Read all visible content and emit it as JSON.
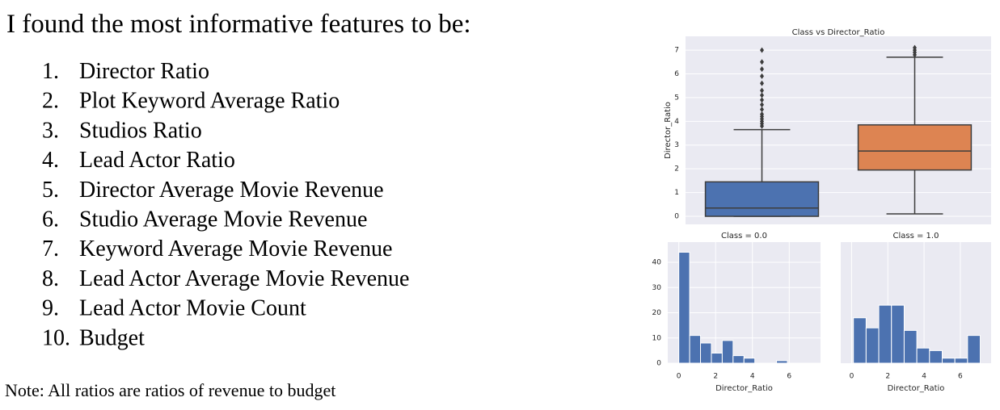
{
  "heading": "I found the most informative features to be:",
  "items": [
    {
      "number": "1.",
      "text": "Director Ratio"
    },
    {
      "number": "2.",
      "text": "Plot Keyword Average Ratio"
    },
    {
      "number": "3.",
      "text": "Studios Ratio"
    },
    {
      "number": "4.",
      "text": "Lead Actor Ratio"
    },
    {
      "number": "5.",
      "text": "Director Average Movie Revenue"
    },
    {
      "number": "6.",
      "text": "Studio Average Movie Revenue"
    },
    {
      "number": "7.",
      "text": "Keyword Average Movie Revenue"
    },
    {
      "number": "8.",
      "text": "Lead Actor Average Movie Revenue"
    },
    {
      "number": "9.",
      "text": "Lead Actor Movie Count"
    },
    {
      "number": "10.",
      "text": "Budget"
    }
  ],
  "note": "Note: All ratios are ratios of revenue to budget",
  "chart_data": [
    {
      "type": "box",
      "title": "Class vs Director_Ratio",
      "y_label": "Director_Ratio",
      "ylim": [
        -0.34,
        7.58
      ],
      "yticks": [
        0,
        1,
        2,
        3,
        4,
        5,
        6,
        7
      ],
      "grid": true,
      "boxes": [
        {
          "color": "#4c72b0",
          "min": 0,
          "q1": 0,
          "median": 0.35,
          "q3": 1.45,
          "max": 3.65,
          "outliers": [
            3.8,
            3.9,
            4.0,
            4.1,
            4.2,
            4.3,
            4.5,
            4.7,
            4.9,
            5.1,
            5.3,
            5.6,
            5.9,
            6.2,
            6.5,
            7.0
          ]
        },
        {
          "color": "#dd8452",
          "min": 0.1,
          "q1": 1.95,
          "median": 2.75,
          "q3": 3.85,
          "max": 6.7,
          "outliers": [
            6.8,
            6.9,
            7.0,
            7.1
          ]
        }
      ]
    },
    {
      "type": "histogram",
      "title": "Class = 0.0",
      "x_label": "Director_Ratio",
      "color": "#4c72b0",
      "bins": [
        0,
        0.59,
        1.18,
        1.77,
        2.36,
        2.95,
        3.54,
        4.13,
        4.72,
        5.31,
        5.9,
        6.49,
        7.08
      ],
      "values": [
        44,
        11,
        8,
        4,
        9,
        3,
        2,
        0,
        0,
        1,
        0,
        0
      ],
      "xlim": [
        -0.6,
        7.7
      ],
      "xticks": [
        0,
        2,
        4,
        6
      ],
      "ylim": [
        0,
        48
      ],
      "yticks": [
        0,
        10,
        20,
        30,
        40
      ],
      "grid": true
    },
    {
      "type": "histogram",
      "title": "Class = 1.0",
      "x_label": "Director_Ratio",
      "color": "#4c72b0",
      "bins": [
        0.1,
        0.8,
        1.5,
        2.2,
        2.9,
        3.6,
        4.3,
        5.0,
        5.7,
        6.4,
        7.1
      ],
      "values": [
        18,
        14,
        23,
        23,
        13,
        6,
        5,
        2,
        2,
        11
      ],
      "xlim": [
        -0.6,
        7.7
      ],
      "xticks": [
        0,
        2,
        4,
        6
      ],
      "ylim": [
        0,
        48
      ],
      "grid": true
    }
  ]
}
